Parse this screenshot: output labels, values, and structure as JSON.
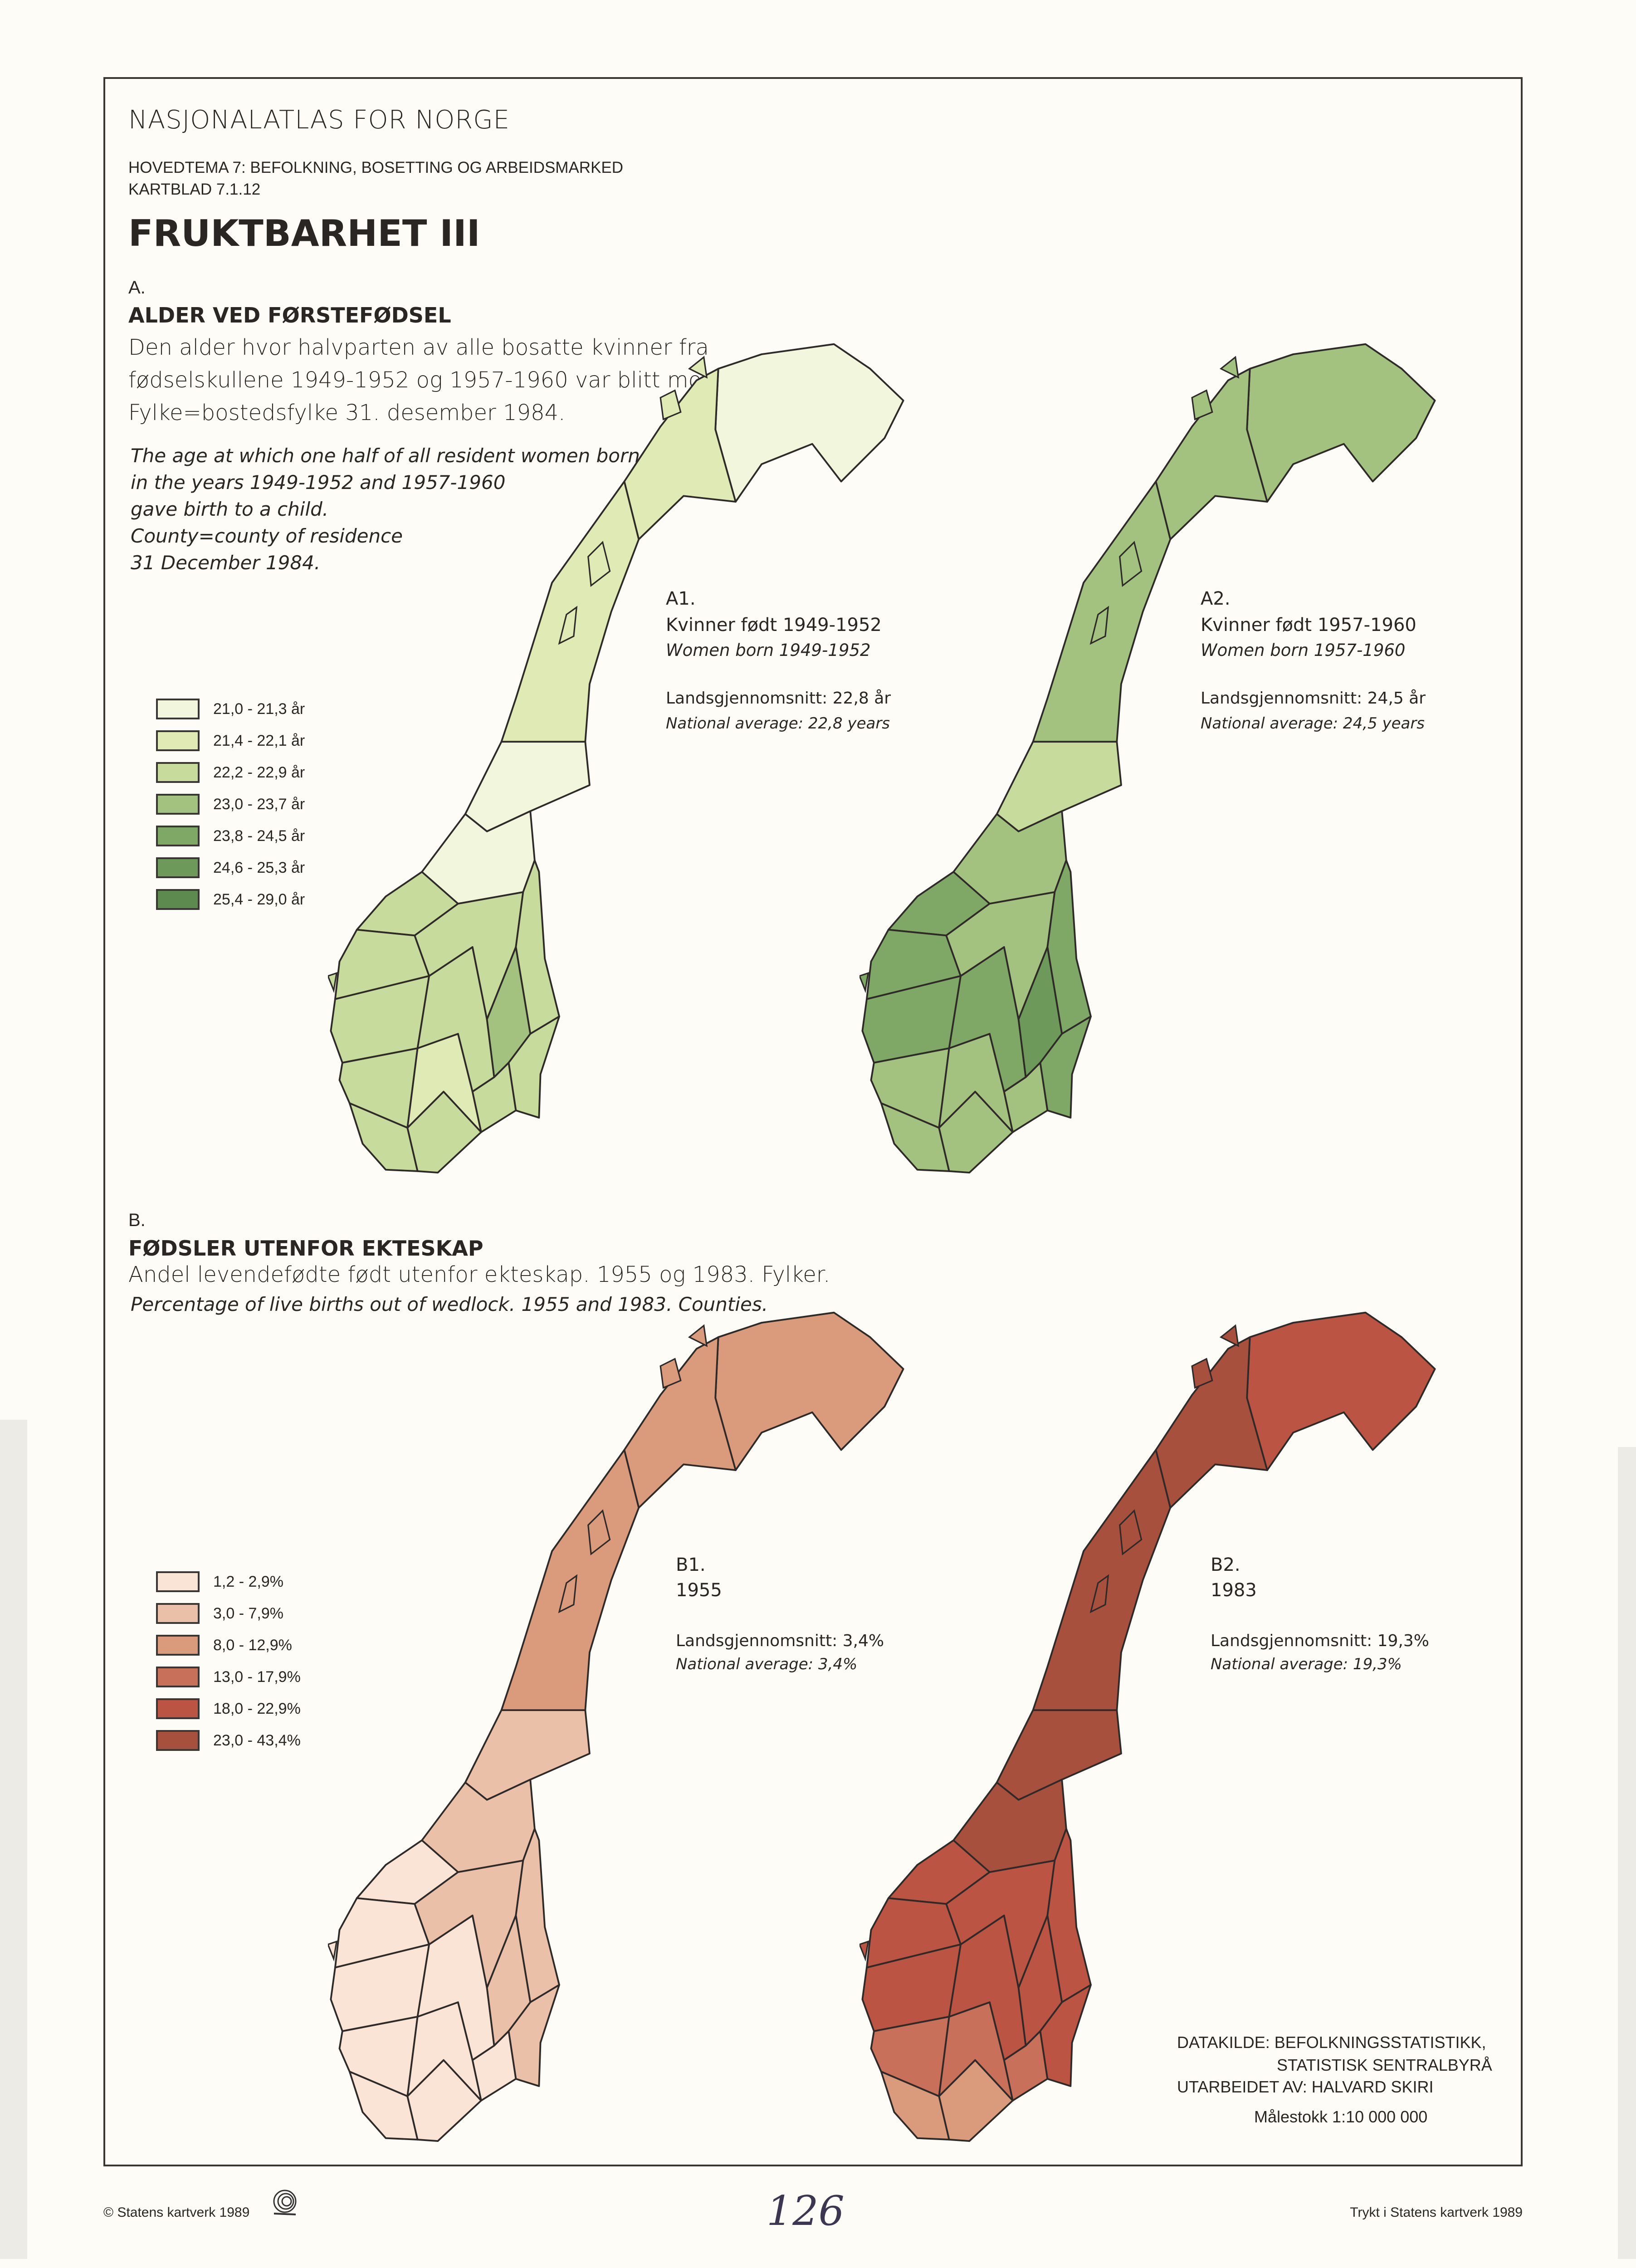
{
  "header": {
    "atlas_title": "NASJONALATLAS FOR NORGE",
    "theme": "HOVEDTEMA 7: BEFOLKNING, BOSETTING OG ARBEIDSMARKED",
    "sheet": "KARTBLAD  7.1.12",
    "title": "FRUKTBARHET III"
  },
  "section_a": {
    "letter": "A.",
    "title": "ALDER VED FØRSTEFØDSEL",
    "desc": [
      "Den alder hvor halvparten av alle bosatte kvinner fra",
      "fødselskullene 1949-1952 og 1957-1960 var blitt mor.",
      "Fylke=bostedsfylke  31. desember 1984."
    ],
    "desc_en": [
      "The age at which one half of all resident women born",
      "in the years 1949-1952 and 1957-1960",
      "gave birth to a child.",
      "County=county of residence",
      "31 December 1984."
    ],
    "maps": [
      {
        "id": "A1.",
        "line1": "Kvinner født 1949-1952",
        "line2": "Women born 1949-1952",
        "avg_no": "Landsgjennomsnitt: 22,8 år",
        "avg_en": "National average: 22,8 years"
      },
      {
        "id": "A2.",
        "line1": "Kvinner født 1957-1960",
        "line2": "Women born 1957-1960",
        "avg_no": "Landsgjennomsnitt: 24,5 år",
        "avg_en": "National average: 24,5 years"
      }
    ]
  },
  "section_b": {
    "letter": "B.",
    "title": "FØDSLER UTENFOR EKTESKAP",
    "desc": "Andel levendefødte født utenfor ekteskap. 1955 og 1983. Fylker.",
    "desc_en": "Percentage of live births out of wedlock. 1955 and 1983. Counties.",
    "maps": [
      {
        "id": "B1.",
        "line1": "1955",
        "avg_no": "Landsgjennomsnitt: 3,4%",
        "avg_en": "National average: 3,4%"
      },
      {
        "id": "B2.",
        "line1": "1983",
        "avg_no": "Landsgjennomsnitt: 19,3%",
        "avg_en": "National average: 19,3%"
      }
    ]
  },
  "credits": {
    "source1": "DATAKILDE:  BEFOLKNINGSSTATISTIKK,",
    "source2": "STATISTISK SENTRALBYRÅ",
    "author": "UTARBEIDET AV: HALVARD SKIRI",
    "scale": "Målestokk 1:10 000 000"
  },
  "footer": {
    "copyright": "© Statens kartverk 1989",
    "page_number": "126",
    "printed": "Trykt i Statens kartverk 1989"
  },
  "chart_data": {
    "type": "choropleth",
    "legend_a": [
      {
        "label": "21,0 - 21,3 år",
        "color": "#f2f6dc"
      },
      {
        "label": "21,4 - 22,1 år",
        "color": "#dfeab4"
      },
      {
        "label": "22,2 - 22,9 år",
        "color": "#c7db9c"
      },
      {
        "label": "23,0 - 23,7 år",
        "color": "#a3c17f"
      },
      {
        "label": "23,8 - 24,5 år",
        "color": "#7fa866"
      },
      {
        "label": "24,6 - 25,3 år",
        "color": "#6d9a5a"
      },
      {
        "label": "25,4 - 29,0 år",
        "color": "#5d8a4e"
      }
    ],
    "legend_b": [
      {
        "label": "1,2 -   2,9%",
        "color": "#f9e4d6"
      },
      {
        "label": "3,0 -   7,9%",
        "color": "#ebc0a8"
      },
      {
        "label": "8,0 - 12,9%",
        "color": "#d99b7c"
      },
      {
        "label": "13,0 - 17,9%",
        "color": "#c8705a"
      },
      {
        "label": "18,0 - 22,9%",
        "color": "#bb5443"
      },
      {
        "label": "23,0 - 43,4%",
        "color": "#a8503e"
      }
    ],
    "county_classes": {
      "A1": [
        0,
        1,
        1,
        0,
        0,
        2,
        2,
        2,
        2,
        2,
        2,
        1,
        2,
        2,
        2,
        3,
        2,
        2
      ],
      "A2": [
        3,
        3,
        3,
        2,
        3,
        4,
        4,
        4,
        3,
        3,
        3,
        3,
        4,
        3,
        4,
        5,
        4,
        3
      ],
      "B1": [
        2,
        2,
        2,
        1,
        1,
        0,
        0,
        0,
        0,
        0,
        0,
        0,
        0,
        1,
        1,
        1,
        1,
        0
      ],
      "B2": [
        4,
        5,
        5,
        5,
        5,
        4,
        4,
        4,
        3,
        2,
        2,
        3,
        4,
        4,
        4,
        4,
        4,
        3
      ]
    }
  }
}
